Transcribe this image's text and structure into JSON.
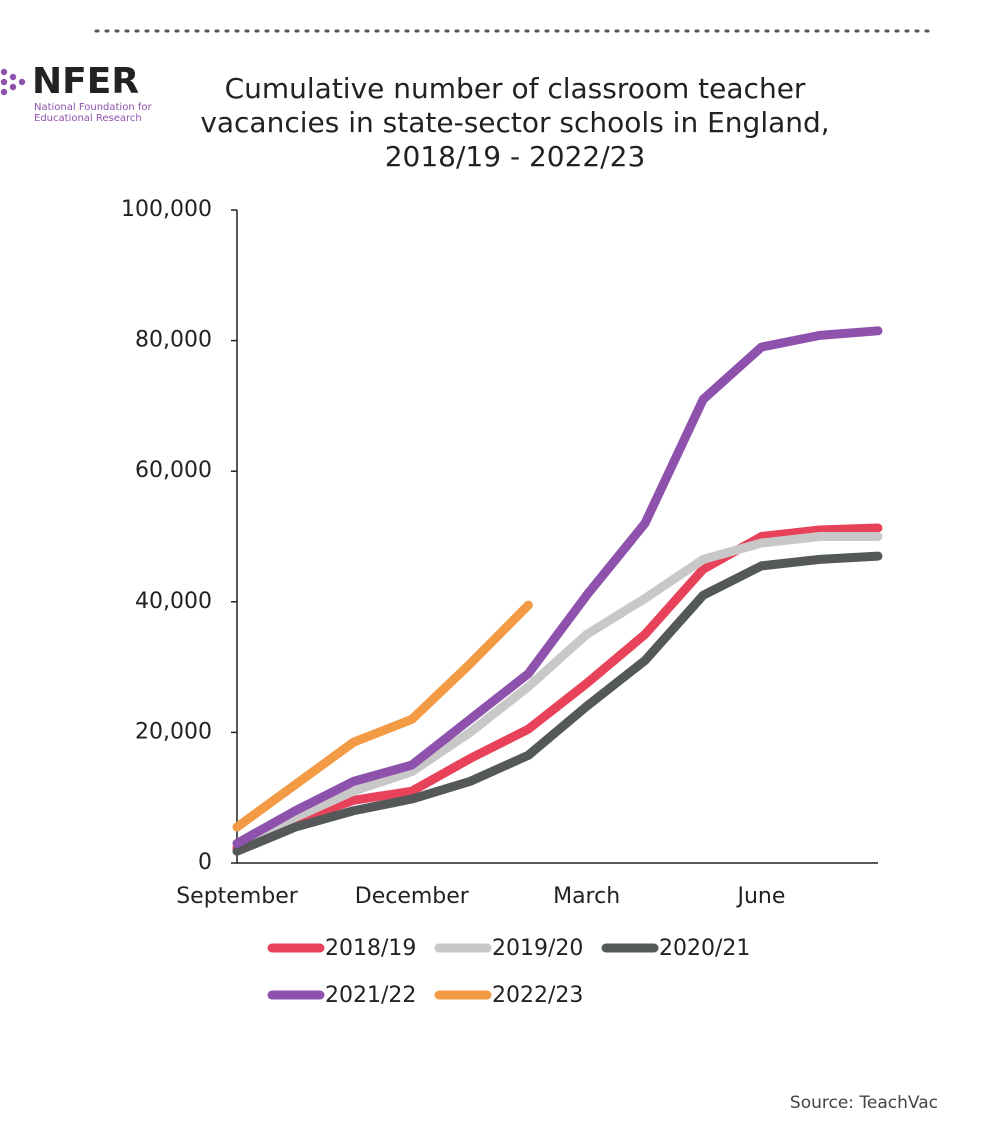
{
  "logo": {
    "name": "NFER",
    "subtitle_lines": [
      "National Foundation for",
      "Educational Research"
    ]
  },
  "source": "Source: TeachVac",
  "chart_data": {
    "type": "line",
    "title": "Cumulative number of classroom teacher vacancies in state-sector schools in England, 2018/19 - 2022/23",
    "categories": [
      "September",
      null,
      null,
      "December",
      null,
      null,
      "March",
      null,
      null,
      "June",
      null,
      null
    ],
    "series": [
      {
        "name": "2018/19",
        "color": "#e8425a",
        "values": [
          2300,
          6500,
          9600,
          11000,
          16000,
          20500,
          27500,
          35000,
          45000,
          50000,
          51000,
          51300
        ]
      },
      {
        "name": "2019/20",
        "color": "#c8c8c8",
        "values": [
          3000,
          7000,
          11000,
          14000,
          20000,
          27000,
          35000,
          40500,
          46500,
          49000,
          50000,
          50000
        ]
      },
      {
        "name": "2020/21",
        "color": "#555859",
        "values": [
          1800,
          5500,
          8000,
          9800,
          12500,
          16500,
          24000,
          31000,
          41000,
          45500,
          46500,
          47000
        ]
      },
      {
        "name": "2021/22",
        "color": "#8e52ad",
        "values": [
          3000,
          8000,
          12500,
          15000,
          22000,
          29000,
          41000,
          52000,
          71000,
          79000,
          80800,
          81500
        ]
      },
      {
        "name": "2022/23",
        "color": "#f39a45",
        "values": [
          5500,
          12000,
          18500,
          22000,
          30500,
          39500,
          null,
          null,
          null,
          null,
          null,
          null
        ]
      }
    ],
    "ylim": [
      0,
      100000
    ],
    "yticks": [
      0,
      {
        "value": 20000,
        "label": "20,000"
      },
      {
        "value": 40000,
        "label": "40,000"
      },
      {
        "value": 60000,
        "label": "60,000"
      },
      {
        "value": 80000,
        "label": "80,000"
      },
      {
        "value": 100000,
        "label": "100,000"
      }
    ],
    "grid": false,
    "legend": "bottom"
  }
}
